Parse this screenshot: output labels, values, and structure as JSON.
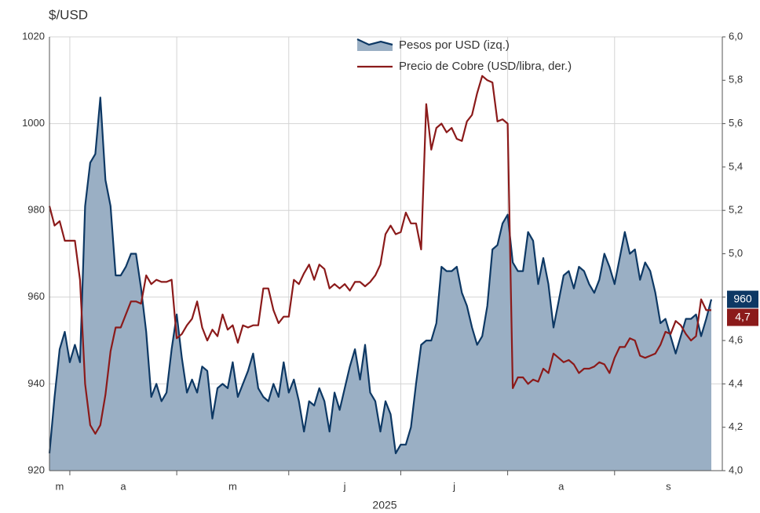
{
  "chart_data": {
    "type": "area-line",
    "y_label": "$/USD",
    "x_label": "2025",
    "categories": [
      "m",
      null,
      null,
      null,
      "a",
      null,
      null,
      null,
      null,
      null,
      null,
      null,
      null,
      null,
      null,
      null,
      null,
      null,
      null,
      null,
      null,
      null,
      null,
      null,
      null,
      "m",
      null,
      null,
      null,
      null,
      null,
      null,
      null,
      null,
      null,
      null,
      null,
      null,
      null,
      null,
      null,
      null,
      null,
      null,
      null,
      null,
      null,
      "j",
      null,
      null,
      null,
      null,
      null,
      null,
      null,
      null,
      null,
      null,
      null,
      null,
      null,
      null,
      null,
      null,
      null,
      null,
      null,
      null,
      null,
      "j",
      null,
      null,
      null,
      null,
      null,
      null,
      null,
      null,
      null,
      null,
      null,
      null,
      null,
      null,
      null,
      null,
      null,
      null,
      null,
      null,
      "a",
      null,
      null,
      null,
      null,
      null,
      null,
      null,
      null,
      null,
      null,
      null,
      null,
      null,
      null,
      null,
      null,
      null,
      null,
      null,
      null,
      "s",
      null,
      null,
      null,
      null,
      null,
      null,
      null,
      null,
      null,
      null,
      null,
      null,
      null,
      null,
      null,
      null,
      null,
      null,
      null
    ],
    "series": [
      {
        "name": "Pesos por USD (izq.)",
        "color": "#0d3864",
        "fill": "#9aafc4",
        "axis": "y",
        "values": [
          924,
          937,
          948,
          952,
          945,
          949,
          945,
          981,
          991,
          993,
          1006,
          987,
          981,
          965,
          965,
          967,
          970,
          970,
          962,
          952,
          937,
          940,
          936,
          938,
          948,
          956,
          946,
          938,
          941,
          938,
          944,
          943,
          932,
          939,
          940,
          939,
          945,
          937,
          940,
          943,
          947,
          939,
          937,
          936,
          940,
          937,
          945,
          938,
          941,
          936,
          929,
          936,
          935,
          939,
          936,
          929,
          938,
          934,
          939,
          944,
          948,
          941,
          949,
          938,
          936,
          929,
          936,
          933,
          924,
          926,
          926,
          930,
          940,
          949,
          950,
          950,
          954,
          967,
          966,
          966,
          967,
          961,
          958,
          953,
          949,
          951,
          958,
          971,
          972,
          977,
          979,
          968,
          966,
          966,
          975,
          973,
          963,
          969,
          963,
          953,
          959,
          965,
          966,
          962,
          967,
          966,
          963,
          961,
          964,
          970,
          967,
          963,
          969,
          975,
          970,
          971,
          964,
          968,
          966,
          961,
          954,
          955,
          951,
          947,
          951,
          955,
          955,
          956,
          951,
          955,
          959.5
        ],
        "value_labels": {
          "130": "960"
        }
      },
      {
        "name": "Precio de Cobre (USD/libra, der.)",
        "color": "#8b1a1a",
        "axis": "y2",
        "values": [
          5.22,
          5.13,
          5.15,
          5.06,
          5.06,
          5.06,
          4.88,
          4.4,
          4.21,
          4.17,
          4.21,
          4.35,
          4.55,
          4.66,
          4.66,
          4.72,
          4.78,
          4.78,
          4.77,
          4.9,
          4.86,
          4.88,
          4.87,
          4.87,
          4.88,
          4.61,
          4.63,
          4.67,
          4.7,
          4.78,
          4.66,
          4.6,
          4.65,
          4.62,
          4.72,
          4.65,
          4.67,
          4.59,
          4.67,
          4.66,
          4.67,
          4.67,
          4.84,
          4.84,
          4.74,
          4.68,
          4.71,
          4.71,
          4.88,
          4.86,
          4.91,
          4.95,
          4.88,
          4.95,
          4.93,
          4.84,
          4.86,
          4.84,
          4.86,
          4.83,
          4.87,
          4.87,
          4.85,
          4.87,
          4.9,
          4.95,
          5.09,
          5.13,
          5.09,
          5.1,
          5.19,
          5.14,
          5.14,
          5.02,
          5.69,
          5.48,
          5.58,
          5.6,
          5.56,
          5.58,
          5.53,
          5.52,
          5.61,
          5.64,
          5.74,
          5.82,
          5.8,
          5.79,
          5.61,
          5.62,
          5.6,
          4.38,
          4.43,
          4.43,
          4.4,
          4.42,
          4.41,
          4.47,
          4.45,
          4.54,
          4.52,
          4.5,
          4.51,
          4.49,
          4.45,
          4.47,
          4.47,
          4.48,
          4.5,
          4.49,
          4.45,
          4.52,
          4.57,
          4.57,
          4.61,
          4.6,
          4.53,
          4.52,
          4.53,
          4.54,
          4.58,
          4.64,
          4.63,
          4.69,
          4.67,
          4.63,
          4.6,
          4.62,
          4.79,
          4.74,
          4.74
        ],
        "value_labels": {
          "130": "4,7"
        }
      }
    ],
    "ylim": [
      920,
      1020
    ],
    "yticks": [
      920,
      940,
      960,
      980,
      1000,
      1020
    ],
    "y2lim": [
      4.0,
      6.0
    ],
    "y2ticks": [
      {
        "value": 4.0,
        "label": "4,0"
      },
      {
        "value": 4.2,
        "label": "4,2"
      },
      {
        "value": 4.4,
        "label": "4,4"
      },
      {
        "value": 4.6,
        "label": "4,6"
      },
      {
        "value": 4.8,
        "label": "4,8"
      },
      {
        "value": 5.0,
        "label": "5,0"
      },
      {
        "value": 5.2,
        "label": "5,2"
      },
      {
        "value": 5.4,
        "label": "5,4"
      },
      {
        "value": 5.6,
        "label": "5,6"
      },
      {
        "value": 5.8,
        "label": "5,8"
      },
      {
        "value": 6.0,
        "label": "6,0"
      }
    ],
    "grid": true,
    "legend": "top"
  }
}
